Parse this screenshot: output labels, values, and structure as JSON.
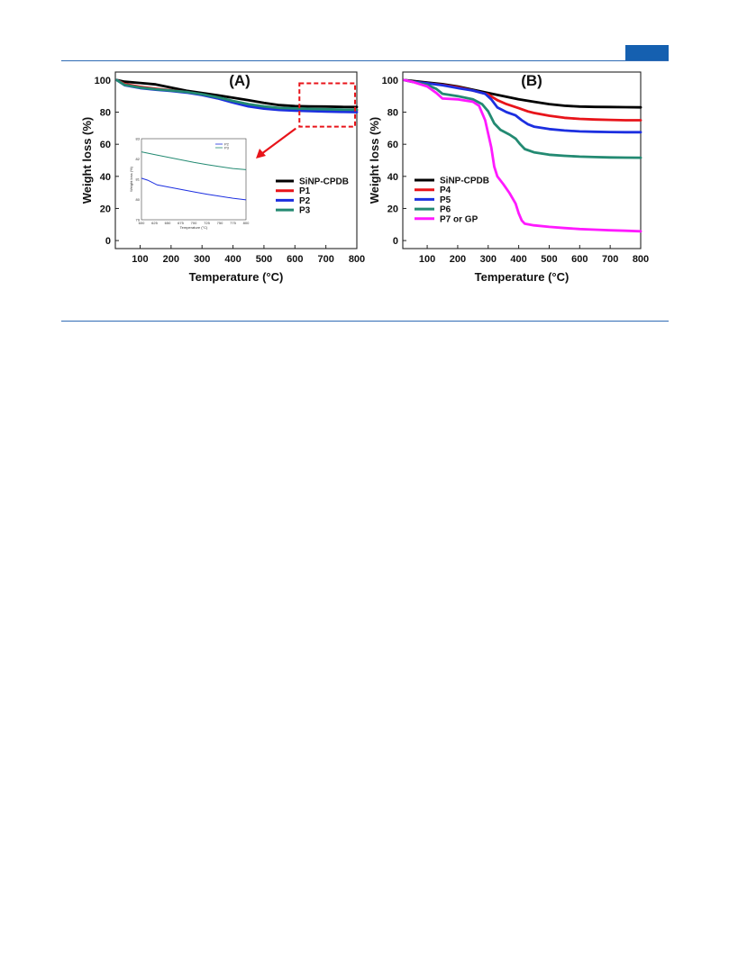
{
  "page": {
    "accent_color": "#1560b0",
    "rule_color": "#2f6bb5"
  },
  "chart_data": [
    {
      "type": "line",
      "panel_label": "(A)",
      "title": "",
      "xlabel": "Temperature (°C)",
      "ylabel": "Weight loss (%)",
      "xlim": [
        20,
        800
      ],
      "ylim": [
        -5,
        105
      ],
      "xticks": [
        100,
        200,
        300,
        400,
        500,
        600,
        700,
        800
      ],
      "yticks": [
        0,
        20,
        40,
        60,
        80,
        100
      ],
      "legend_position": "center-right",
      "annotation": "dashed box 600–800 °C zoomed in inset",
      "series": [
        {
          "name": "SiNP-CPDB",
          "color": "#000000",
          "x": [
            25,
            50,
            100,
            150,
            200,
            250,
            300,
            350,
            400,
            450,
            500,
            550,
            600,
            650,
            700,
            750,
            800
          ],
          "y": [
            100,
            99,
            98.2,
            97.3,
            95.3,
            93.3,
            91.9,
            90.5,
            89.0,
            87.5,
            85.8,
            84.4,
            83.8,
            83.6,
            83.5,
            83.3,
            83.2
          ]
        },
        {
          "name": "P1",
          "color": "#e8141a",
          "x": [
            25,
            50,
            100,
            150,
            200,
            250,
            300,
            350,
            400,
            450,
            500,
            550,
            600,
            650,
            700,
            750,
            800
          ],
          "y": [
            100,
            97.5,
            95.8,
            94.6,
            93.6,
            92.5,
            91.0,
            89.0,
            86.8,
            84.8,
            83.3,
            82.5,
            82.0,
            81.7,
            81.5,
            81.3,
            81.2
          ]
        },
        {
          "name": "P2",
          "color": "#1c2fe0",
          "x": [
            25,
            50,
            100,
            150,
            200,
            250,
            300,
            350,
            400,
            450,
            500,
            550,
            600,
            650,
            700,
            750,
            800
          ],
          "y": [
            100,
            96.8,
            95.0,
            94.0,
            93.2,
            92.2,
            90.7,
            88.6,
            86.0,
            83.6,
            82.2,
            81.4,
            81.0,
            80.7,
            80.4,
            80.2,
            80.0
          ]
        },
        {
          "name": "P3",
          "color": "#238a72",
          "x": [
            25,
            50,
            100,
            150,
            200,
            250,
            300,
            350,
            400,
            450,
            500,
            550,
            600,
            650,
            700,
            750,
            800
          ],
          "y": [
            100,
            97.0,
            95.3,
            94.3,
            93.5,
            92.6,
            91.2,
            89.3,
            87.0,
            85.0,
            83.6,
            82.6,
            82.3,
            82.0,
            81.8,
            81.6,
            81.5
          ]
        }
      ],
      "inset": {
        "xlabel": "Temperature (°C)",
        "ylabel": "Weight loss (%)",
        "xlim": [
          600,
          800
        ],
        "ylim": [
          79,
          83
        ],
        "xticks": [
          600,
          625,
          650,
          675,
          700,
          725,
          750,
          775,
          800
        ],
        "yticks": [
          79,
          80,
          81,
          82,
          83
        ],
        "legend_position": "top-right",
        "series": [
          {
            "name": "P2",
            "color": "#1c2fe0",
            "x": [
              600,
              612,
              630,
              650,
              675,
              700,
              725,
              750,
              775,
              800
            ],
            "y": [
              81.05,
              80.95,
              80.72,
              80.62,
              80.5,
              80.38,
              80.26,
              80.16,
              80.06,
              79.98
            ]
          },
          {
            "name": "P3",
            "color": "#238a72",
            "x": [
              600,
              625,
              650,
              675,
              700,
              725,
              750,
              775,
              800
            ],
            "y": [
              82.35,
              82.22,
              82.09,
              81.96,
              81.83,
              81.72,
              81.62,
              81.53,
              81.47
            ]
          }
        ]
      }
    },
    {
      "type": "line",
      "panel_label": "(B)",
      "title": "",
      "xlabel": "Temperature (°C)",
      "ylabel": "Weight loss (%)",
      "xlim": [
        20,
        800
      ],
      "ylim": [
        -5,
        105
      ],
      "xticks": [
        100,
        200,
        300,
        400,
        500,
        600,
        700,
        800
      ],
      "yticks": [
        0,
        20,
        40,
        60,
        80,
        100
      ],
      "legend_position": "center-left",
      "series": [
        {
          "name": "SiNP-CPDB",
          "color": "#000000",
          "x": [
            25,
            50,
            100,
            150,
            200,
            250,
            300,
            350,
            400,
            450,
            500,
            550,
            600,
            650,
            700,
            750,
            800
          ],
          "y": [
            100,
            99.5,
            98.5,
            97.5,
            96.0,
            94.0,
            92.0,
            90.0,
            88.0,
            86.5,
            85.0,
            84.0,
            83.5,
            83.3,
            83.2,
            83.1,
            83.0
          ]
        },
        {
          "name": "P4",
          "color": "#e8141a",
          "x": [
            25,
            50,
            100,
            150,
            200,
            250,
            300,
            330,
            360,
            400,
            430,
            450,
            500,
            550,
            600,
            650,
            700,
            750,
            800
          ],
          "y": [
            100,
            99.0,
            98.0,
            97.0,
            95.5,
            93.5,
            91.0,
            87.5,
            85.0,
            82.5,
            80.5,
            79.5,
            77.8,
            76.5,
            75.8,
            75.4,
            75.2,
            75.0,
            75.0
          ]
        },
        {
          "name": "P5",
          "color": "#1c2fe0",
          "x": [
            25,
            50,
            100,
            150,
            200,
            250,
            290,
            310,
            330,
            360,
            390,
            410,
            430,
            450,
            500,
            550,
            600,
            650,
            700,
            750,
            800
          ],
          "y": [
            100,
            99.0,
            98.0,
            96.8,
            95.0,
            93.5,
            91.5,
            88.0,
            83.0,
            80.0,
            78.0,
            75.0,
            72.5,
            71.0,
            69.5,
            68.6,
            68.0,
            67.8,
            67.6,
            67.5,
            67.5
          ]
        },
        {
          "name": "P6",
          "color": "#238a72",
          "x": [
            25,
            50,
            100,
            130,
            150,
            200,
            250,
            280,
            300,
            320,
            340,
            370,
            390,
            405,
            420,
            450,
            500,
            550,
            600,
            650,
            700,
            750,
            800
          ],
          "y": [
            100,
            99.0,
            97.0,
            94.5,
            91.5,
            90.0,
            88.0,
            85.0,
            80.5,
            73.0,
            69.0,
            66.0,
            63.5,
            60.0,
            57.0,
            55.0,
            53.5,
            52.8,
            52.3,
            52.0,
            51.8,
            51.7,
            51.6
          ]
        },
        {
          "name": "P7 or GP",
          "color": "#ff1aff",
          "x": [
            25,
            50,
            100,
            130,
            150,
            200,
            250,
            270,
            290,
            310,
            320,
            330,
            350,
            370,
            390,
            400,
            410,
            420,
            450,
            500,
            550,
            600,
            650,
            700,
            750,
            800
          ],
          "y": [
            100,
            99.0,
            96.0,
            92.0,
            88.5,
            88.0,
            86.5,
            84.0,
            75.0,
            58.0,
            46.0,
            40.0,
            35.0,
            29.5,
            23.0,
            17.0,
            12.5,
            10.5,
            9.5,
            8.5,
            7.8,
            7.2,
            6.8,
            6.4,
            6.1,
            5.8
          ]
        }
      ]
    }
  ]
}
